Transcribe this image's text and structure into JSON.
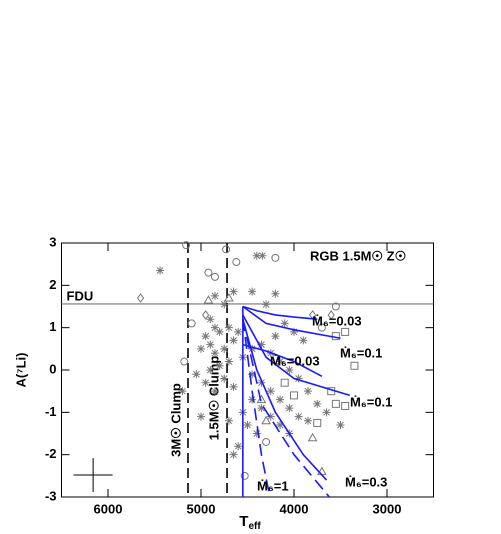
{
  "chart_data": {
    "type": "scatter",
    "title": "RGB 1.5M☉ Z☉",
    "xlabel": [
      "T",
      "eff"
    ],
    "ylabel": "A(⁷Li)",
    "xlim": [
      6500,
      2500
    ],
    "ylim": [
      -3,
      3
    ],
    "xticks": [
      6000,
      5000,
      4000,
      3000
    ],
    "yticks": [
      -3,
      -2,
      -1,
      0,
      1,
      2,
      3
    ],
    "series": [
      {
        "marker": "asterisk",
        "color": "#777777",
        "x": [
          5440,
          4340,
          4400,
          4200,
          4450,
          4650,
          4850,
          4300,
          4750,
          4900,
          4850,
          4800,
          4700,
          4950,
          4900,
          5000,
          4850,
          4750,
          4650,
          4600,
          4700,
          4800,
          4900,
          5050,
          4950,
          4850,
          4750,
          4650,
          4550,
          4450,
          4350,
          4250,
          4150,
          4050,
          3950,
          3850,
          3750,
          3650,
          3500,
          4450,
          4350,
          4250,
          4150,
          4050,
          3950,
          3850,
          4450,
          4350,
          4250,
          4150,
          4050,
          4550,
          4500,
          4400,
          4600,
          4700,
          4650,
          5200,
          5000,
          4100,
          4000,
          3900,
          4200
        ],
        "y": [
          2.35,
          2.7,
          2.7,
          1.8,
          1.85,
          1.85,
          1.75,
          1.55,
          1.55,
          1.2,
          1.0,
          0.9,
          1.0,
          0.8,
          0.6,
          0.5,
          0.4,
          0.5,
          0.7,
          0.9,
          0.2,
          0.1,
          0.0,
          -0.1,
          -0.3,
          -0.5,
          -0.2,
          -0.4,
          0.3,
          0.5,
          0.6,
          0.4,
          0.2,
          0.0,
          -0.2,
          -0.5,
          -0.8,
          -1.0,
          -1.3,
          -0.1,
          -0.3,
          -0.5,
          -0.7,
          -0.9,
          -1.1,
          -1.2,
          -0.7,
          -0.9,
          -1.1,
          -1.3,
          -1.5,
          -1.0,
          -1.3,
          -1.5,
          -1.8,
          -1.2,
          -2.0,
          -0.5,
          -1.1,
          1.1,
          0.9,
          0.7,
          0.8
        ]
      },
      {
        "marker": "circle",
        "color": "#777777",
        "x": [
          5160,
          4730,
          4920,
          4850,
          4620,
          4200,
          5180,
          5100,
          4530,
          3550,
          3700,
          4300
        ],
        "y": [
          2.95,
          2.85,
          2.3,
          2.2,
          2.55,
          2.65,
          0.2,
          1.1,
          -2.5,
          1.5,
          1.0,
          -1.7
        ]
      },
      {
        "marker": "diamond",
        "color": "#777777",
        "x": [
          5650,
          4950,
          3800,
          3600
        ],
        "y": [
          1.7,
          1.3,
          1.3,
          1.3
        ]
      },
      {
        "marker": "square",
        "color": "#777777",
        "x": [
          3450,
          3550,
          3350,
          3600,
          3550,
          3450,
          3750,
          4100,
          4000
        ],
        "y": [
          0.9,
          0.8,
          0.1,
          -0.5,
          -0.8,
          -0.85,
          -1.25,
          -0.3,
          -0.6
        ]
      },
      {
        "marker": "triangle",
        "color": "#777777",
        "x": [
          4920,
          4700,
          3800,
          4300,
          4350,
          3700
        ],
        "y": [
          1.65,
          1.7,
          -1.6,
          -1.2,
          -0.7,
          -2.4
        ]
      }
    ],
    "lines": [
      {
        "color": "#1a1aff",
        "dash": false,
        "x": [
          4550,
          4400,
          4200,
          4000,
          3750
        ],
        "y": [
          1.5,
          1.4,
          1.3,
          1.25,
          1.2
        ]
      },
      {
        "color": "#1a1aff",
        "dash": false,
        "x": [
          4550,
          4300,
          4000,
          3500
        ],
        "y": [
          1.5,
          1.1,
          0.95,
          0.75
        ]
      },
      {
        "color": "#1a1aff",
        "dash": false,
        "x": [
          4550,
          4300,
          4000,
          3700
        ],
        "y": [
          0.6,
          0.45,
          0.2,
          -0.15
        ]
      },
      {
        "color": "#1a1aff",
        "dash": false,
        "x": [
          4550,
          4300,
          4000,
          3400
        ],
        "y": [
          1.3,
          0.3,
          -0.2,
          -0.6
        ]
      },
      {
        "color": "#1a1aff",
        "dash": false,
        "x": [
          4550,
          4400,
          4200,
          3900,
          3650
        ],
        "y": [
          1.2,
          0,
          -1.0,
          -2.0,
          -2.6
        ]
      },
      {
        "color": "#1a1aff",
        "dash": false,
        "x": [
          4550,
          4550
        ],
        "y": [
          1.5,
          -3
        ]
      },
      {
        "color": "#1a1aff",
        "dash": true,
        "x": [
          4550,
          4450,
          4350,
          4260
        ],
        "y": [
          1.2,
          -0.5,
          -2.0,
          -3
        ]
      },
      {
        "color": "#1a1aff",
        "dash": true,
        "x": [
          4550,
          4350,
          4000,
          3620
        ],
        "y": [
          1.2,
          -0.8,
          -2.0,
          -3
        ]
      }
    ],
    "hline": {
      "y": 1.56,
      "color": "#777777",
      "label": "FDU"
    },
    "vlines": [
      {
        "x": 5140,
        "label": "3M☉ Clump"
      },
      {
        "x": 4720,
        "label": "1.5M☉ Clump"
      }
    ],
    "annotations": [
      "Ṁ₆=0.03",
      "Ṁ₆=0.1",
      "Ṁ₆=0.03",
      "Ṁ₆=0.1",
      "Ṁ₆=1",
      "Ṁ₆=0.3"
    ],
    "error_bar": {
      "x": 6160,
      "y": -2.48,
      "xerr": 210,
      "yerr": 0.4
    }
  }
}
